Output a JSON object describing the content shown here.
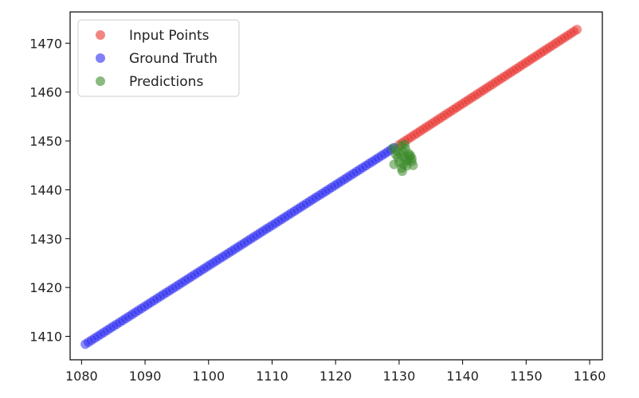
{
  "chart_data": {
    "type": "scatter",
    "title": "",
    "xlabel": "",
    "ylabel": "",
    "xlim": [
      1078.2,
      1162.0
    ],
    "ylim": [
      1405.2,
      1476.4
    ],
    "x_ticks": [
      1080,
      1090,
      1100,
      1110,
      1120,
      1130,
      1140,
      1150,
      1160
    ],
    "y_ticks": [
      1410,
      1420,
      1430,
      1440,
      1450,
      1460,
      1470
    ],
    "legend_position": "top-left",
    "grid": false,
    "series": [
      {
        "name": "Input Points",
        "color": "#e8332e",
        "segments": [
          {
            "from": [
              1130.0,
              1449.2
            ],
            "to": [
              1158.0,
              1472.8
            ],
            "count": 60
          }
        ],
        "points": []
      },
      {
        "name": "Ground Truth",
        "color": "#2b2bf0",
        "segments": [
          {
            "from": [
              1080.6,
              1408.4
            ],
            "to": [
              1129.2,
              1448.6
            ],
            "count": 100
          }
        ],
        "points": []
      },
      {
        "name": "Predictions",
        "color": "#3d8a2a",
        "segments": [],
        "points": [
          [
            1129.0,
            1448.5
          ],
          [
            1129.6,
            1448.0
          ],
          [
            1130.2,
            1447.3
          ],
          [
            1130.8,
            1446.7
          ],
          [
            1131.4,
            1446.1
          ],
          [
            1132.0,
            1445.8
          ],
          [
            1131.6,
            1446.8
          ],
          [
            1130.6,
            1447.8
          ],
          [
            1130.0,
            1445.6
          ],
          [
            1129.2,
            1445.2
          ],
          [
            1130.4,
            1444.4
          ],
          [
            1131.2,
            1444.9
          ],
          [
            1132.0,
            1446.4
          ],
          [
            1131.0,
            1448.4
          ],
          [
            1130.3,
            1449.0
          ],
          [
            1131.5,
            1447.4
          ],
          [
            1130.7,
            1445.2
          ],
          [
            1129.8,
            1446.6
          ],
          [
            1132.2,
            1445.0
          ],
          [
            1130.5,
            1443.8
          ],
          [
            1131.1,
            1446.0
          ],
          [
            1129.5,
            1447.2
          ],
          [
            1131.8,
            1447.0
          ],
          [
            1130.9,
            1449.3
          ]
        ]
      }
    ]
  }
}
